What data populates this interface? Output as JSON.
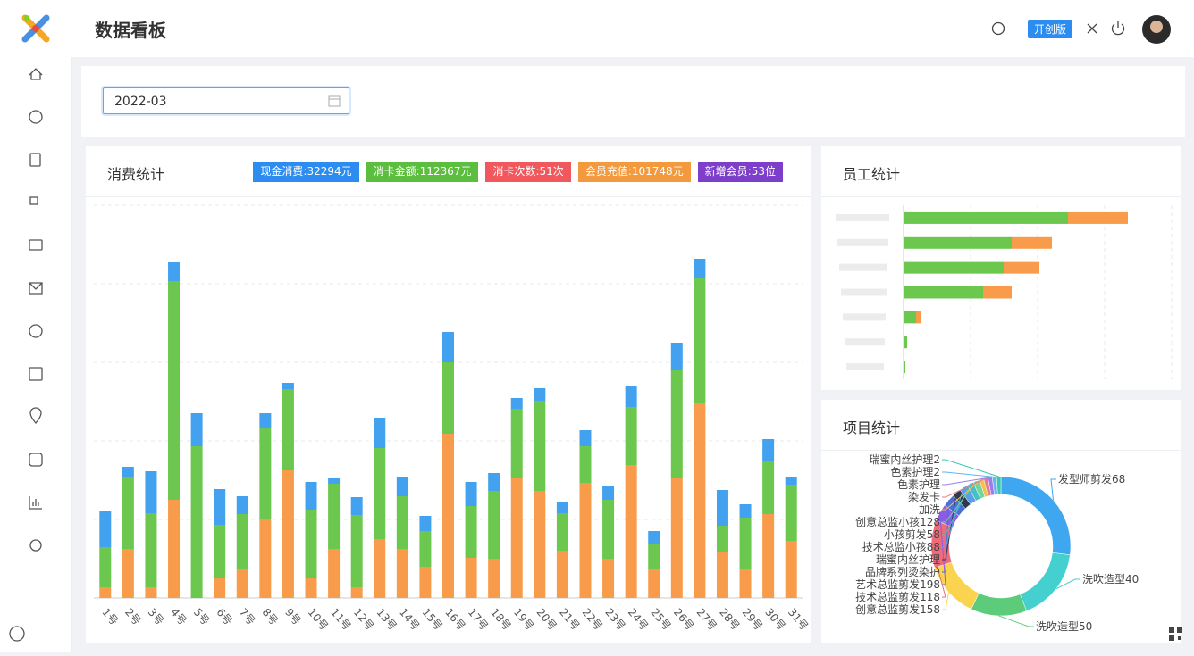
{
  "header": {
    "title": "数据看板",
    "badge": "开创版"
  },
  "filter": {
    "date": "2022-03"
  },
  "chart_data": [
    {
      "type": "stacked-bar",
      "title": "消费统计",
      "tags": [
        {
          "text": "现金消费:32294元",
          "color": "#2d8cf0"
        },
        {
          "text": "消卡金额:112367元",
          "color": "#5cbe3e"
        },
        {
          "text": "消卡次数:51次",
          "color": "#f0585d"
        },
        {
          "text": "会员充值:101748元",
          "color": "#f39a3e"
        },
        {
          "text": "新增会员:53位",
          "color": "#7d3fc9"
        }
      ],
      "categories": [
        "1号",
        "2号",
        "3号",
        "4号",
        "5号",
        "6号",
        "7号",
        "8号",
        "9号",
        "10号",
        "11号",
        "12号",
        "13号",
        "14号",
        "15号",
        "16号",
        "17号",
        "18号",
        "19号",
        "20号",
        "21号",
        "22号",
        "23号",
        "24号",
        "25号",
        "26号",
        "27号",
        "28号",
        "29号",
        "30号",
        "31号"
      ],
      "series": [
        {
          "color": "#f89c4c",
          "values": [
            12,
            55,
            12,
            110,
            0,
            22,
            33,
            88,
            143,
            22,
            55,
            12,
            66,
            55,
            35,
            184,
            45,
            44,
            134,
            120,
            53,
            129,
            44,
            149,
            32,
            134,
            218,
            51,
            33,
            94,
            64
          ]
        },
        {
          "color": "#6cc74f",
          "values": [
            45,
            80,
            83,
            245,
            170,
            60,
            61,
            102,
            91,
            77,
            73,
            81,
            102,
            59,
            40,
            80,
            58,
            76,
            78,
            101,
            42,
            41,
            66,
            65,
            28,
            121,
            141,
            30,
            57,
            60,
            63
          ]
        },
        {
          "color": "#43a2f0",
          "values": [
            40,
            12,
            47,
            21,
            37,
            40,
            20,
            17,
            7,
            31,
            6,
            20,
            34,
            21,
            17,
            34,
            27,
            20,
            12,
            14,
            13,
            18,
            15,
            24,
            15,
            31,
            21,
            40,
            15,
            24,
            8
          ]
        }
      ],
      "ylim": [
        0,
        440
      ],
      "yticks": [
        0,
        88,
        176,
        264,
        352,
        440
      ],
      "grid": true
    },
    {
      "type": "horizontal-stacked-bar",
      "title": "员工统计",
      "categories": [
        null,
        null,
        null,
        null,
        null,
        null,
        null
      ],
      "series": [
        {
          "color": "#6cc74f",
          "values": [
            184,
            121,
            112,
            89,
            14,
            4,
            2
          ]
        },
        {
          "color": "#f89c4c",
          "values": [
            67,
            45,
            40,
            32,
            6,
            0,
            0
          ]
        }
      ],
      "xlim": [
        0,
        300
      ],
      "xticks": [
        0,
        75,
        150,
        225,
        300
      ],
      "grid": true
    },
    {
      "type": "donut",
      "title": "项目统计",
      "categories": [
        "发型师剪发68",
        "洗吹造型40",
        "洗吹造型50",
        "创意总监剪发158",
        "技术总监剪发118",
        "艺术总监剪发198",
        "品牌系列烫染护",
        "瑞蜜内丝护理",
        "技术总监小孩88",
        "小孩剪发58",
        "创意总监小孩128",
        "加洗",
        "染发卡",
        "色素护理",
        "色素护理2",
        "瑞蜜内丝护理2"
      ],
      "values": [
        27,
        17,
        13,
        13,
        11,
        4,
        3,
        2,
        2,
        1.5,
        1.5,
        1,
        1,
        1,
        1,
        1
      ],
      "colors": [
        "#3fa7f0",
        "#44d0cf",
        "#5ccc7a",
        "#fad44e",
        "#ef6a7a",
        "#8b5ce6",
        "#4b6fd8",
        "#2f3a4f",
        "#5aa0e6",
        "#46c0c8",
        "#76d39a",
        "#f2c14e",
        "#e57d8e",
        "#a07ce8",
        "#62b6f2",
        "#3cc7b0"
      ]
    }
  ]
}
